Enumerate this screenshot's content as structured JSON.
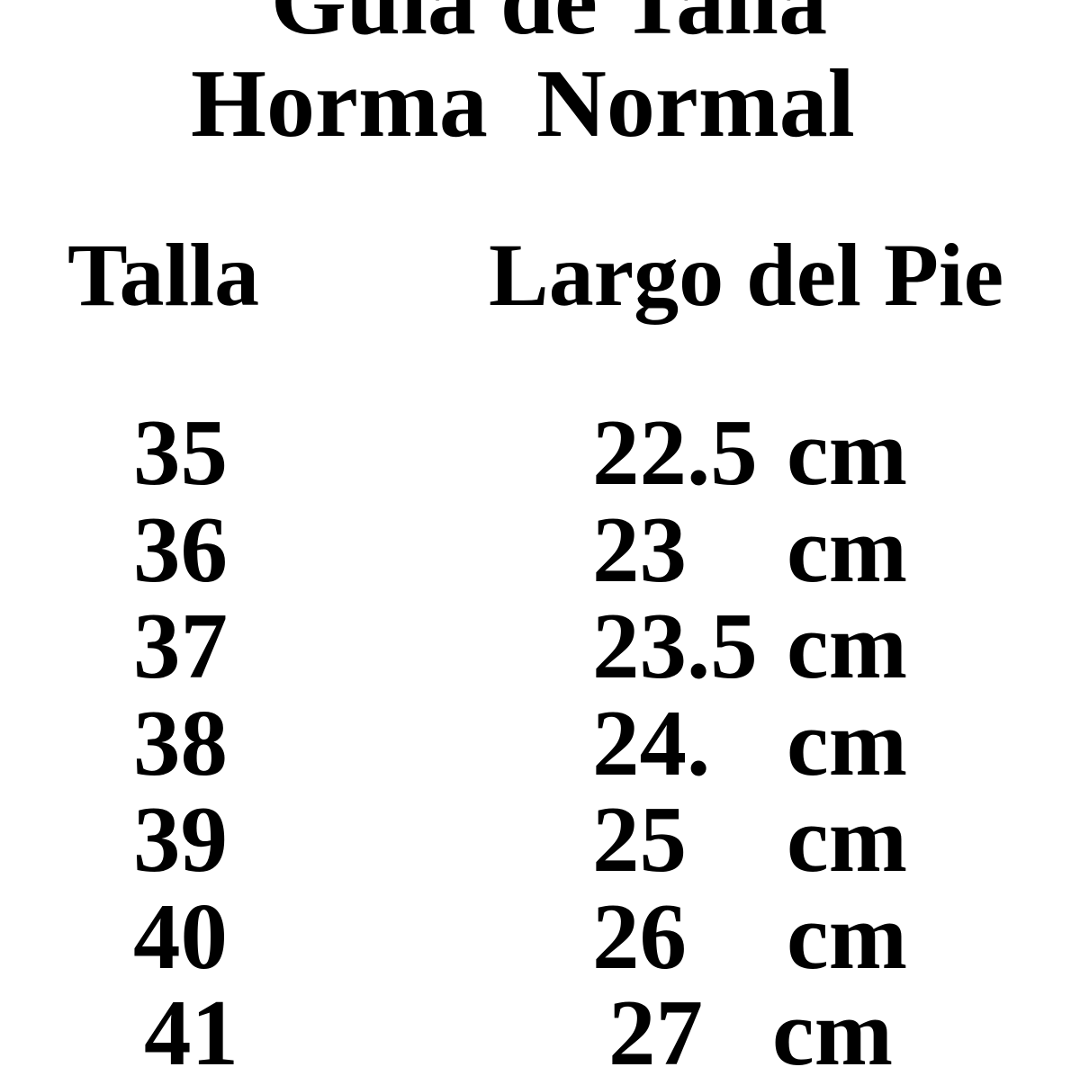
{
  "title": {
    "line1": "Guía de Talla",
    "line2": "Horma  Normal"
  },
  "headers": {
    "size": "Talla",
    "length": "Largo del Pie"
  },
  "rows": [
    {
      "size": "35",
      "length": "22.5",
      "unit": "cm"
    },
    {
      "size": "36",
      "length": "23",
      "unit": "cm"
    },
    {
      "size": "37",
      "length": "23.5",
      "unit": "cm"
    },
    {
      "size": "38",
      "length": "24.",
      "unit": "cm"
    },
    {
      "size": "39",
      "length": "25",
      "unit": "cm"
    },
    {
      "size": "40",
      "length": "26",
      "unit": "cm"
    },
    {
      "size": "41",
      "length": "27",
      "unit": "cm"
    }
  ]
}
